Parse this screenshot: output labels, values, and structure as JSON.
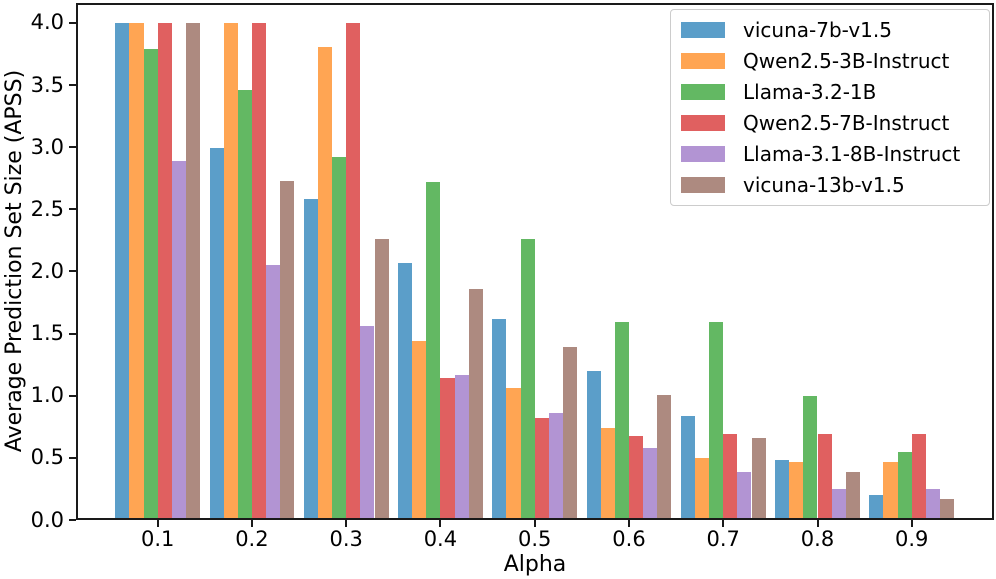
{
  "chart_data": {
    "type": "bar",
    "title": "",
    "xlabel": "Alpha",
    "ylabel": "Average Prediction Set Size (APSS)",
    "categories": [
      "0.1",
      "0.2",
      "0.3",
      "0.4",
      "0.5",
      "0.6",
      "0.7",
      "0.8",
      "0.9"
    ],
    "yticks": [
      "0.0",
      "0.5",
      "1.0",
      "1.5",
      "2.0",
      "2.5",
      "3.0",
      "3.5",
      "4.0"
    ],
    "ylim": [
      0,
      4.16
    ],
    "grid": false,
    "legend_position": "upper right",
    "axis_color": "#1a1a1a",
    "series": [
      {
        "name": "vicuna-7b-v1.5",
        "color": "#5B9EC9",
        "values": [
          4.0,
          2.99,
          2.58,
          2.07,
          1.62,
          1.2,
          0.84,
          0.48,
          0.2
        ]
      },
      {
        "name": "Qwen2.5-3B-Instruct",
        "color": "#FFA553",
        "values": [
          4.0,
          4.0,
          3.81,
          1.44,
          1.06,
          0.74,
          0.5,
          0.47,
          0.47
        ]
      },
      {
        "name": "Llama-3.2-1B",
        "color": "#63B863",
        "values": [
          3.79,
          3.46,
          2.92,
          2.72,
          2.26,
          1.59,
          1.59,
          1.0,
          0.55
        ]
      },
      {
        "name": "Qwen2.5-7B-Instruct",
        "color": "#E06060",
        "values": [
          4.0,
          4.0,
          4.0,
          1.14,
          0.82,
          0.68,
          0.69,
          0.69,
          0.69
        ]
      },
      {
        "name": "Llama-3.1-8B-Instruct",
        "color": "#B294D3",
        "values": [
          2.89,
          2.05,
          1.56,
          1.17,
          0.86,
          0.58,
          0.39,
          0.25,
          0.25
        ]
      },
      {
        "name": "vicuna-13b-v1.5",
        "color": "#AD8A80",
        "values": [
          4.0,
          2.73,
          2.26,
          1.86,
          1.39,
          1.01,
          0.66,
          0.39,
          0.17
        ]
      }
    ]
  }
}
